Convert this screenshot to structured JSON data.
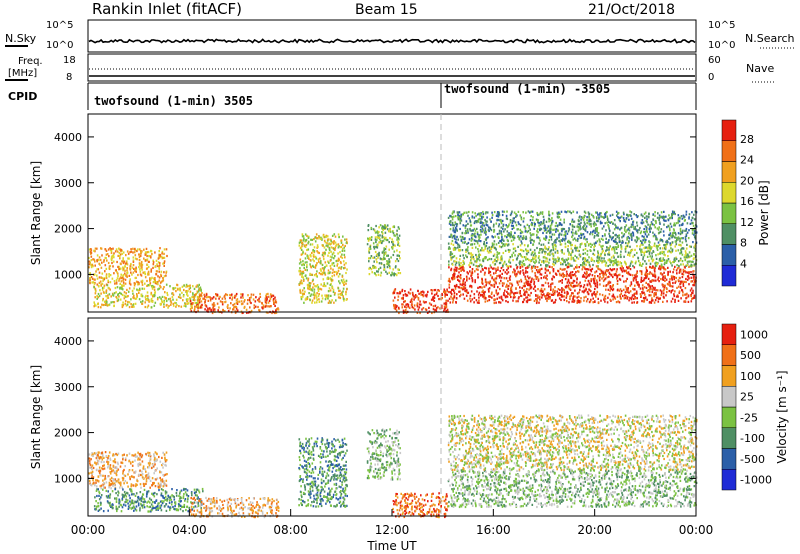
{
  "header": {
    "radar": "Rankin Inlet (fitACF)",
    "beam": "Beam 15",
    "date": "21/Oct/2018"
  },
  "noise_panel": {
    "left_label": "N.Sky",
    "right_label": "N.Search",
    "left_ticks": [
      "10^5",
      "10^0"
    ],
    "right_ticks": [
      "10^5",
      "10^0"
    ]
  },
  "freq_panel": {
    "left_label_1": "Freq.",
    "left_label_2": "[MHz]",
    "left_ticks": [
      "18",
      "8"
    ],
    "right_label": "Nave",
    "right_ticks": [
      "60",
      "0"
    ]
  },
  "cpid_panel": {
    "label": "CPID",
    "segments": [
      {
        "text": "twofsound (1-min) 3505"
      },
      {
        "text": "twofsound (1-min) -3505"
      }
    ]
  },
  "chart_data": [
    {
      "type": "heatmap",
      "quantity": "power",
      "ylabel": "Slant Range [km]",
      "xlabel": "",
      "ylim": [
        180,
        4500
      ],
      "xlim": [
        "00:00",
        "24:00"
      ],
      "yticks": [
        "1000",
        "2000",
        "3000",
        "4000"
      ],
      "colorbar_label": "Power [dB]",
      "colorbar_ticks": [
        "4",
        "8",
        "12",
        "16",
        "20",
        "24",
        "28"
      ],
      "colorbar_colors": [
        "#1f2bd6",
        "#2b5fa8",
        "#4f8f64",
        "#7bc242",
        "#ddd82d",
        "#f0a020",
        "#f07018",
        "#e62010"
      ],
      "scatter_regions": [
        {
          "t0": 0.0,
          "t1": 3.1,
          "r0": 800,
          "r1": 1600,
          "level": 5
        },
        {
          "t0": 0.2,
          "t1": 4.5,
          "r0": 300,
          "r1": 800,
          "level": 4
        },
        {
          "t0": 4.0,
          "t1": 7.5,
          "r0": 180,
          "r1": 600,
          "level": 6
        },
        {
          "t0": 8.3,
          "t1": 10.2,
          "r0": 400,
          "r1": 1900,
          "level": 4
        },
        {
          "t0": 11.0,
          "t1": 12.3,
          "r0": 1000,
          "r1": 2100,
          "level": 3
        },
        {
          "t0": 12.0,
          "t1": 14.2,
          "r0": 180,
          "r1": 700,
          "level": 7
        },
        {
          "t0": 14.2,
          "t1": 24.0,
          "r0": 400,
          "r1": 1200,
          "level": 7
        },
        {
          "t0": 14.2,
          "t1": 24.0,
          "r0": 1200,
          "r1": 1700,
          "level": 3
        },
        {
          "t0": 14.2,
          "t1": 24.0,
          "r0": 1700,
          "r1": 2400,
          "level": 2
        }
      ]
    },
    {
      "type": "heatmap",
      "quantity": "velocity",
      "ylabel": "Slant Range [km]",
      "xlabel": "Time UT",
      "ylim": [
        180,
        4500
      ],
      "xlim": [
        "00:00",
        "24:00"
      ],
      "yticks": [
        "1000",
        "2000",
        "3000",
        "4000"
      ],
      "xticks": [
        "00:00",
        "04:00",
        "08:00",
        "12:00",
        "16:00",
        "20:00",
        "00:00"
      ],
      "colorbar_label": "Velocity [m s⁻¹]",
      "colorbar_ticks": [
        "1000",
        "500",
        "100",
        "25",
        "-25",
        "-100",
        "-500",
        "-1000"
      ],
      "colorbar_colors": [
        "#1f2bd6",
        "#2b5fa8",
        "#4f8f64",
        "#7bc242",
        "#c8c8c8",
        "#f0a020",
        "#f07018",
        "#e62010"
      ],
      "scatter_regions": [
        {
          "t0": 0.0,
          "t1": 3.1,
          "r0": 800,
          "r1": 1600,
          "level": 5
        },
        {
          "t0": 0.2,
          "t1": 4.5,
          "r0": 300,
          "r1": 800,
          "level": 2
        },
        {
          "t0": 4.0,
          "t1": 7.5,
          "r0": 180,
          "r1": 600,
          "level": 5
        },
        {
          "t0": 8.3,
          "t1": 10.2,
          "r0": 400,
          "r1": 1900,
          "level": 2
        },
        {
          "t0": 11.0,
          "t1": 12.3,
          "r0": 1000,
          "r1": 2100,
          "level": 3
        },
        {
          "t0": 12.0,
          "t1": 14.2,
          "r0": 180,
          "r1": 700,
          "level": 6
        },
        {
          "t0": 14.2,
          "t1": 24.0,
          "r0": 400,
          "r1": 1200,
          "level": 3
        },
        {
          "t0": 14.2,
          "t1": 24.0,
          "r0": 1200,
          "r1": 1700,
          "level": 4
        },
        {
          "t0": 14.2,
          "t1": 24.0,
          "r0": 1700,
          "r1": 2400,
          "level": 4
        }
      ]
    }
  ],
  "legend_keys": [
    "N.Search",
    "Nave"
  ]
}
